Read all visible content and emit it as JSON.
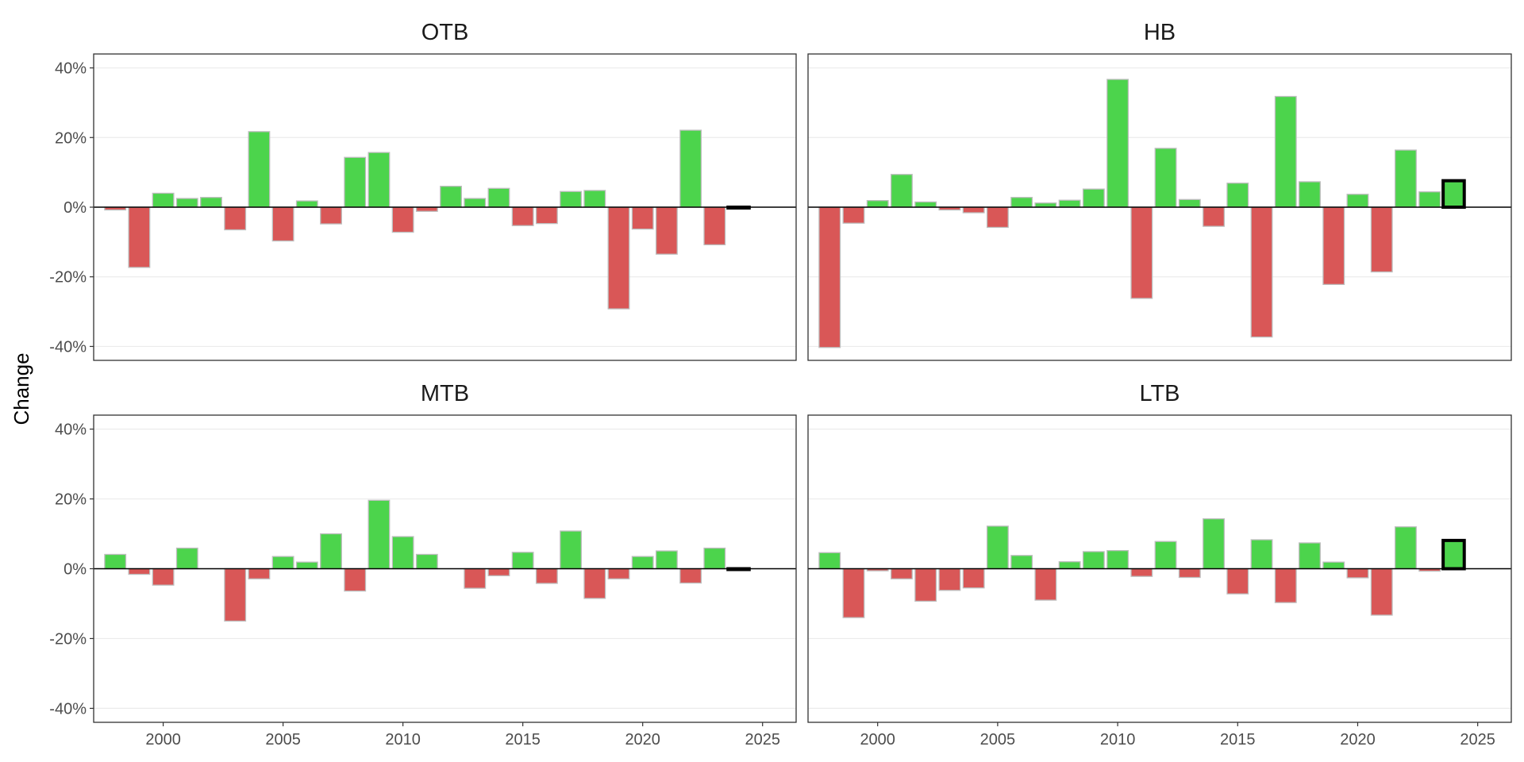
{
  "chart_data": {
    "type": "bar",
    "ylabel": "Change",
    "xlabel": "",
    "ylim": [
      -0.44,
      0.44
    ],
    "xlim": [
      1997.1,
      2026.4
    ],
    "y_ticks": [
      -0.4,
      -0.2,
      0,
      0.2,
      0.4
    ],
    "y_tick_labels": [
      "-40%",
      "-20%",
      "0%",
      "20%",
      "40%"
    ],
    "x_ticks": [
      2000,
      2005,
      2010,
      2015,
      2020,
      2025
    ],
    "x_tick_labels": [
      "2000",
      "2005",
      "2010",
      "2015",
      "2020",
      "2025"
    ],
    "grid": "horizontal major lines only",
    "legend": "none",
    "colors": {
      "positive": "#4cd44c",
      "negative": "#d95757",
      "bar_outline": "#bdbdbd",
      "highlight_outline": "#000000"
    },
    "highlighted_year": 2024,
    "x": [
      1998,
      1999,
      2000,
      2001,
      2002,
      2003,
      2004,
      2005,
      2006,
      2007,
      2008,
      2009,
      2010,
      2011,
      2012,
      2013,
      2014,
      2015,
      2016,
      2017,
      2018,
      2019,
      2020,
      2021,
      2022,
      2023,
      2024
    ],
    "series": [
      {
        "name": "OTB",
        "values": [
          -0.008,
          -0.173,
          0.04,
          0.025,
          0.028,
          -0.065,
          0.217,
          -0.097,
          0.018,
          -0.048,
          0.143,
          0.157,
          -0.072,
          -0.012,
          0.06,
          0.025,
          0.054,
          -0.053,
          -0.047,
          0.045,
          0.048,
          -0.292,
          -0.063,
          -0.135,
          0.221,
          -0.108,
          0.0
        ]
      },
      {
        "name": "HB",
        "values": [
          -0.403,
          -0.046,
          0.019,
          0.094,
          0.015,
          -0.008,
          -0.016,
          -0.058,
          0.028,
          0.012,
          0.02,
          0.052,
          0.367,
          -0.262,
          0.169,
          0.022,
          -0.055,
          0.069,
          -0.373,
          0.318,
          0.073,
          -0.222,
          0.037,
          -0.186,
          0.164,
          0.044,
          0.076
        ]
      },
      {
        "name": "MTB",
        "values": [
          0.041,
          -0.016,
          -0.047,
          0.059,
          0.0,
          -0.15,
          -0.029,
          0.035,
          0.019,
          0.1,
          -0.064,
          0.196,
          0.092,
          0.041,
          0.0,
          -0.056,
          -0.02,
          0.047,
          -0.042,
          0.108,
          -0.085,
          -0.029,
          0.035,
          0.051,
          -0.041,
          0.059,
          0.0
        ]
      },
      {
        "name": "LTB",
        "values": [
          0.046,
          -0.14,
          -0.006,
          -0.029,
          -0.093,
          -0.062,
          -0.055,
          0.122,
          0.038,
          -0.09,
          0.02,
          0.049,
          0.052,
          -0.022,
          0.078,
          -0.025,
          0.143,
          -0.072,
          0.083,
          -0.097,
          0.074,
          0.019,
          -0.026,
          -0.133,
          0.12,
          -0.007,
          0.081
        ]
      }
    ]
  }
}
